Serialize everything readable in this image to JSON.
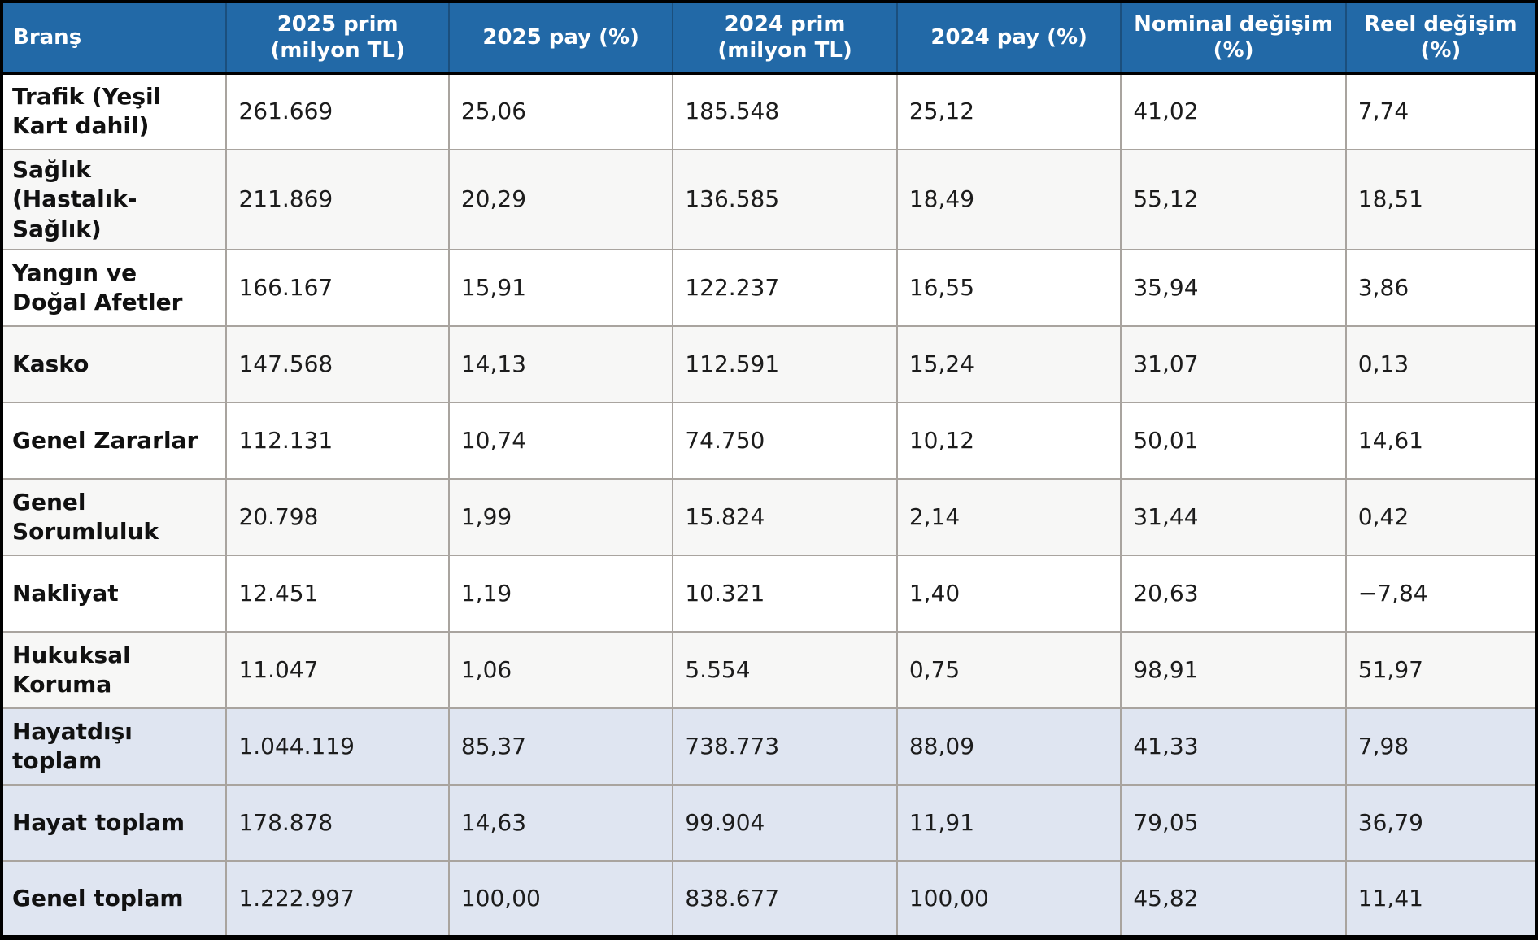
{
  "table": {
    "columns": [
      {
        "label": "Branş"
      },
      {
        "label": "2025 prim (milyon TL)"
      },
      {
        "label": "2025 pay (%)"
      },
      {
        "label": "2024 prim (milyon TL)"
      },
      {
        "label": "2024 pay (%)"
      },
      {
        "label": "Nominal değişim (%)"
      },
      {
        "label": "Reel değişim (%)"
      }
    ],
    "rows": [
      {
        "type": "normal",
        "branch": "Trafik (Yeşil Kart dahil)",
        "values": [
          "261.669",
          "25,06",
          "185.548",
          "25,12",
          "41,02",
          "7,74"
        ]
      },
      {
        "type": "normal",
        "branch": "Sağlık (Hastalık-Sağlık)",
        "values": [
          "211.869",
          "20,29",
          "136.585",
          "18,49",
          "55,12",
          "18,51"
        ]
      },
      {
        "type": "normal",
        "branch": "Yangın ve Doğal Afetler",
        "values": [
          "166.167",
          "15,91",
          "122.237",
          "16,55",
          "35,94",
          "3,86"
        ]
      },
      {
        "type": "normal",
        "branch": "Kasko",
        "values": [
          "147.568",
          "14,13",
          "112.591",
          "15,24",
          "31,07",
          "0,13"
        ]
      },
      {
        "type": "normal",
        "branch": "Genel Zararlar",
        "values": [
          "112.131",
          "10,74",
          "74.750",
          "10,12",
          "50,01",
          "14,61"
        ]
      },
      {
        "type": "normal",
        "branch": "Genel Sorumluluk",
        "values": [
          "20.798",
          "1,99",
          "15.824",
          "2,14",
          "31,44",
          "0,42"
        ]
      },
      {
        "type": "normal",
        "branch": "Nakliyat",
        "values": [
          "12.451",
          "1,19",
          "10.321",
          "1,40",
          "20,63",
          "−7,84"
        ]
      },
      {
        "type": "normal",
        "branch": "Hukuksal Koruma",
        "values": [
          "11.047",
          "1,06",
          "5.554",
          "0,75",
          "98,91",
          "51,97"
        ]
      },
      {
        "type": "total",
        "branch": "Hayatdışı toplam",
        "values": [
          "1.044.119",
          "85,37",
          "738.773",
          "88,09",
          "41,33",
          "7,98"
        ]
      },
      {
        "type": "total",
        "branch": "Hayat toplam",
        "values": [
          "178.878",
          "14,63",
          "99.904",
          "11,91",
          "79,05",
          "36,79"
        ]
      },
      {
        "type": "total",
        "branch": "Genel toplam",
        "values": [
          "1.222.997",
          "100,00",
          "838.677",
          "100,00",
          "45,82",
          "11,41"
        ]
      }
    ]
  },
  "colors": {
    "header_bg": "#2269a7",
    "header_text": "#ffffff",
    "row_bg": "#ffffff",
    "row_alt_bg": "#f7f7f6",
    "total_bg": "#dfe5f1",
    "grid_border": "#a9a49f",
    "outer_border": "#000000"
  }
}
